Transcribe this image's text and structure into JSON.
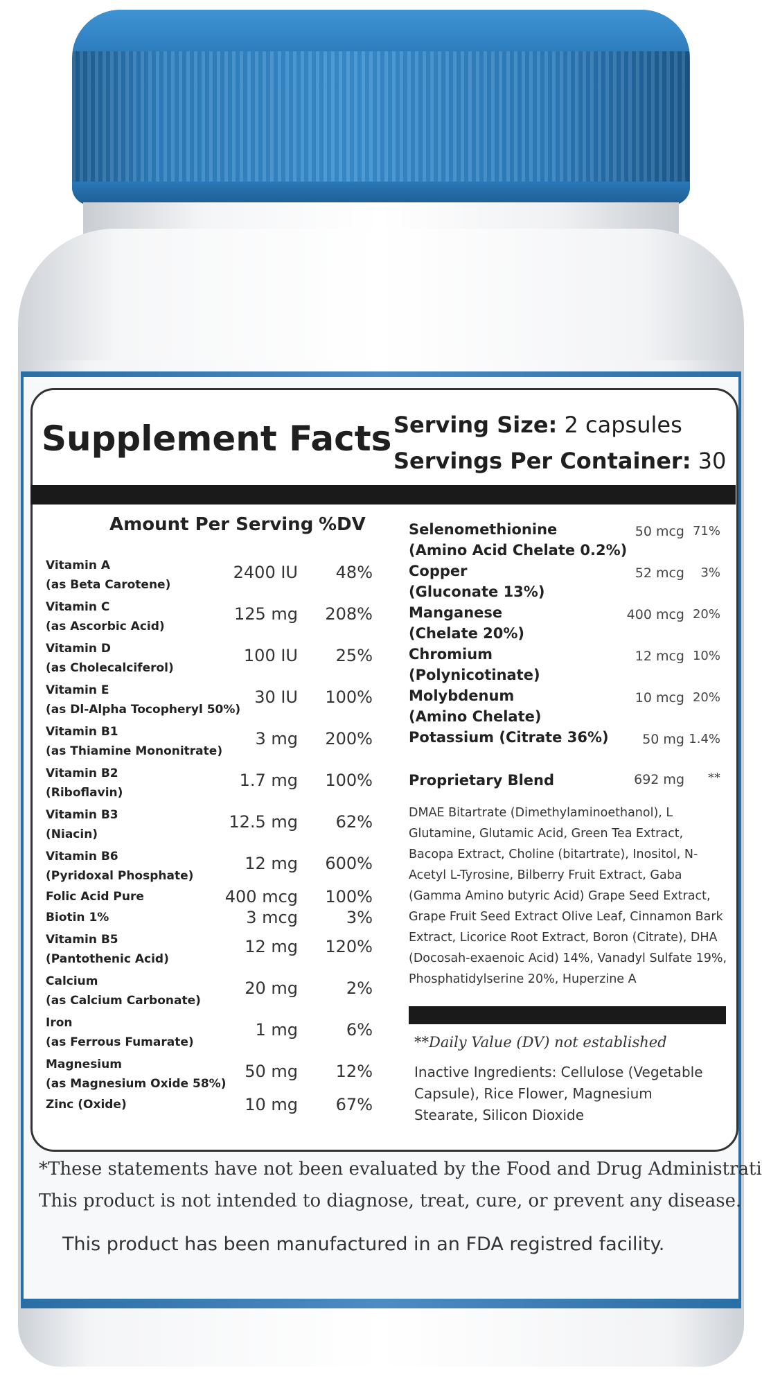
{
  "colors": {
    "cap": "#2f80c0",
    "label_stripe": "#3a7fb8",
    "text": "#2a2a2a"
  },
  "title": "Supplement Facts",
  "serving_size": {
    "label": "Serving Size:",
    "value": "2 capsules"
  },
  "servings_per_container": {
    "label": "Servings Per Container:",
    "value": "30"
  },
  "headers": {
    "amount": "Amount Per Serving",
    "dv": "%DV"
  },
  "left_rows": [
    {
      "name": "Vitamin A",
      "sub": "(as Beta Carotene)",
      "amount": "2400 IU",
      "dv": "48%"
    },
    {
      "name": "Vitamin C",
      "sub": "(as Ascorbic Acid)",
      "amount": "125 mg",
      "dv": "208%"
    },
    {
      "name": "Vitamin D",
      "sub": "(as Cholecalciferol)",
      "amount": "100 IU",
      "dv": "25%"
    },
    {
      "name": "Vitamin E",
      "sub": "(as Dl-Alpha Tocopheryl 50%)",
      "amount": "30 IU",
      "dv": "100%"
    },
    {
      "name": "Vitamin B1",
      "sub": "(as Thiamine Mononitrate)",
      "amount": "3 mg",
      "dv": "200%"
    },
    {
      "name": "Vitamin B2",
      "sub": "(Riboflavin)",
      "amount": "1.7 mg",
      "dv": "100%"
    },
    {
      "name": "Vitamin B3",
      "sub": "(Niacin)",
      "amount": "12.5 mg",
      "dv": "62%"
    },
    {
      "name": "Vitamin B6",
      "sub": "(Pyridoxal Phosphate)",
      "amount": "12 mg",
      "dv": "600%"
    },
    {
      "name": "Folic Acid Pure",
      "sub": "",
      "amount": "400 mcg",
      "dv": "100%"
    },
    {
      "name": "Biotin 1%",
      "sub": "",
      "amount": "3 mcg",
      "dv": "3%"
    },
    {
      "name": "Vitamin B5",
      "sub": "(Pantothenic Acid)",
      "amount": "12 mg",
      "dv": "120%"
    },
    {
      "name": "Calcium",
      "sub": "(as Calcium Carbonate)",
      "amount": "20 mg",
      "dv": "2%"
    },
    {
      "name": "Iron",
      "sub": "(as Ferrous Fumarate)",
      "amount": "1 mg",
      "dv": "6%"
    },
    {
      "name": "Magnesium",
      "sub": "(as Magnesium Oxide 58%)",
      "amount": "50 mg",
      "dv": "12%"
    },
    {
      "name": "Zinc (Oxide)",
      "sub": "",
      "amount": "10 mg",
      "dv": "67%"
    }
  ],
  "right_rows": [
    {
      "name": "Selenomethionine",
      "sub": "(Amino Acid Chelate 0.2%)",
      "amount": "50 mcg",
      "dv": "71%"
    },
    {
      "name": "Copper",
      "sub": "(Gluconate 13%)",
      "amount": "52 mcg",
      "dv": "3%"
    },
    {
      "name": "Manganese",
      "sub": "(Chelate 20%)",
      "amount": "400 mcg",
      "dv": "20%"
    },
    {
      "name": "Chromium",
      "sub": "(Polynicotinate)",
      "amount": "12 mcg",
      "dv": "10%"
    },
    {
      "name": "Molybdenum",
      "sub": "(Amino Chelate)",
      "amount": "10 mcg",
      "dv": "20%"
    },
    {
      "name": "Potassium (Citrate 36%)",
      "sub": "",
      "amount": "50 mg",
      "dv": "1.4%"
    }
  ],
  "blend": {
    "name": "Proprietary Blend",
    "amount": "692 mg",
    "dv": "**",
    "ingredients": "DMAE Bitartrate (Dimethylaminoethanol), L Glutamine, Glutamic Acid, Green Tea Extract, Bacopa Extract, Choline (bitartrate), Inositol, N-Acetyl L-Tyrosine, Bilberry Fruit Extract, Gaba (Gamma Amino butyric Acid) Grape Seed Extract, Grape Fruit Seed Extract Olive Leaf, Cinnamon Bark Extract, Licorice Root Extract, Boron (Citrate), DHA (Docosah-exaenoic Acid) 14%, Vanadyl Sulfate 19%, Phosphatidylserine 20%, Huperzine A"
  },
  "dv_note": "**Daily Value (DV) not established",
  "inactive": "Inactive Ingredients: Cellulose (Vegetable Capsule), Rice Flower, Magnesium Stearate, Silicon Dioxide",
  "disclaimer": {
    "line1": "*These statements have not been evaluated by the Food and Drug Administration.",
    "line2": "This product is not intended to diagnose, treat, cure, or prevent any disease.",
    "line3": "This product has been manufactured in an FDA registred facility."
  }
}
